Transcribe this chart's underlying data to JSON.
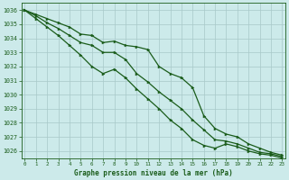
{
  "xlabel": "Graphe pression niveau de la mer (hPa)",
  "bg_color": "#cceaea",
  "grid_color": "#a8c8c8",
  "line_color": "#1a5c1a",
  "marker_color": "#1a5c1a",
  "ylim": [
    1025.5,
    1036.5
  ],
  "xlim": [
    -0.3,
    23.3
  ],
  "yticks": [
    1026,
    1027,
    1028,
    1029,
    1030,
    1031,
    1032,
    1033,
    1034,
    1035,
    1036
  ],
  "xticks": [
    0,
    1,
    2,
    3,
    4,
    5,
    6,
    7,
    8,
    9,
    10,
    11,
    12,
    13,
    14,
    15,
    16,
    17,
    18,
    19,
    20,
    21,
    22,
    23
  ],
  "series": [
    [
      1036.0,
      1035.7,
      1035.4,
      1035.1,
      1034.8,
      1034.3,
      1034.2,
      1033.7,
      1033.8,
      1033.5,
      1033.4,
      1033.2,
      1032.0,
      1031.5,
      1031.2,
      1030.5,
      1028.5,
      1027.6,
      1027.2,
      1027.0,
      1026.5,
      1026.2,
      1025.9,
      1025.7
    ],
    [
      1036.0,
      1035.6,
      1035.1,
      1034.7,
      1034.2,
      1033.7,
      1033.5,
      1033.0,
      1033.0,
      1032.5,
      1031.5,
      1030.9,
      1030.2,
      1029.6,
      1029.0,
      1028.2,
      1027.5,
      1026.8,
      1026.7,
      1026.5,
      1026.2,
      1025.9,
      1025.8,
      1025.6
    ],
    [
      1036.0,
      1035.4,
      1034.8,
      1034.2,
      1033.5,
      1032.8,
      1032.0,
      1031.5,
      1031.8,
      1031.2,
      1030.4,
      1029.7,
      1029.0,
      1028.2,
      1027.6,
      1026.8,
      1026.4,
      1026.2,
      1026.5,
      1026.3,
      1026.0,
      1025.8,
      1025.7,
      1025.5
    ]
  ]
}
